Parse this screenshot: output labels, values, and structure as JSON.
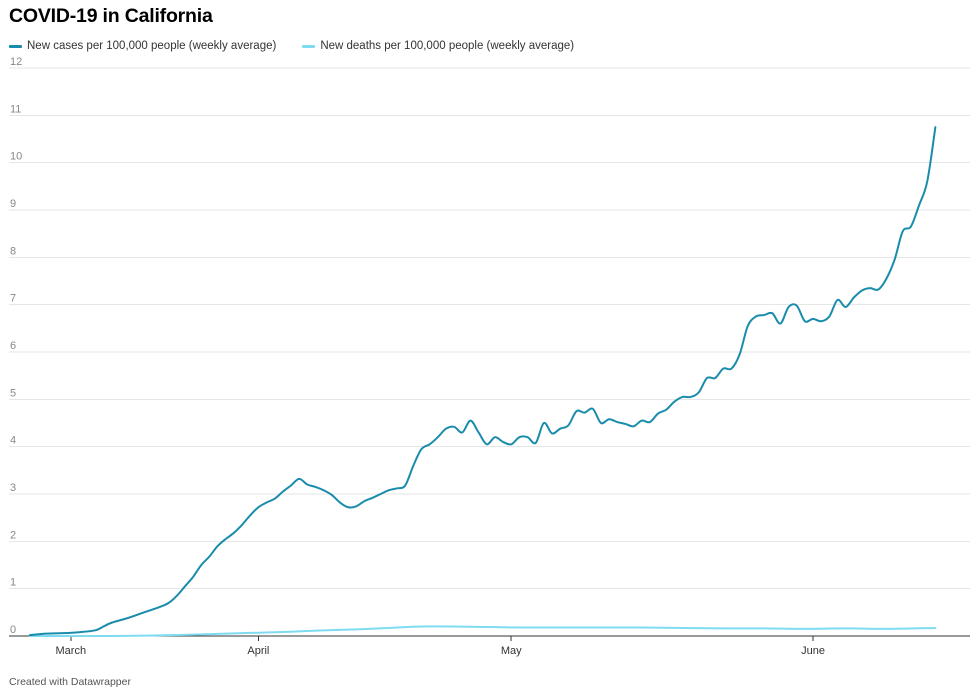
{
  "chart_data": {
    "type": "line",
    "title": "COVID-19 in California",
    "xlabel": "",
    "ylabel": "",
    "ylim": [
      0,
      12
    ],
    "yticks": [
      "0",
      "1",
      "2",
      "3",
      "4",
      "5",
      "6",
      "7",
      "8",
      "9",
      "10",
      "11",
      "12"
    ],
    "x_range_days": [
      0,
      115
    ],
    "xticks": [
      {
        "label": "March",
        "day": 5
      },
      {
        "label": "April",
        "day": 28
      },
      {
        "label": "May",
        "day": 59
      },
      {
        "label": "June",
        "day": 96
      }
    ],
    "series": [
      {
        "name": "New cases per 100,000 people (weekly average)",
        "color": "#1a8cab",
        "points": [
          [
            0,
            0.02
          ],
          [
            2,
            0.05
          ],
          [
            4,
            0.06
          ],
          [
            6,
            0.08
          ],
          [
            8,
            0.12
          ],
          [
            9,
            0.2
          ],
          [
            10,
            0.28
          ],
          [
            12,
            0.38
          ],
          [
            14,
            0.5
          ],
          [
            16,
            0.62
          ],
          [
            17,
            0.7
          ],
          [
            18,
            0.85
          ],
          [
            19,
            1.05
          ],
          [
            20,
            1.25
          ],
          [
            21,
            1.5
          ],
          [
            22,
            1.68
          ],
          [
            23,
            1.9
          ],
          [
            24,
            2.05
          ],
          [
            25,
            2.18
          ],
          [
            26,
            2.35
          ],
          [
            27,
            2.55
          ],
          [
            28,
            2.72
          ],
          [
            29,
            2.82
          ],
          [
            30,
            2.9
          ],
          [
            31,
            3.05
          ],
          [
            32,
            3.18
          ],
          [
            33,
            3.32
          ],
          [
            34,
            3.2
          ],
          [
            35,
            3.15
          ],
          [
            36,
            3.08
          ],
          [
            37,
            2.98
          ],
          [
            38,
            2.82
          ],
          [
            39,
            2.72
          ],
          [
            40,
            2.74
          ],
          [
            41,
            2.85
          ],
          [
            42,
            2.92
          ],
          [
            43,
            3.0
          ],
          [
            44,
            3.08
          ],
          [
            45,
            3.12
          ],
          [
            46,
            3.18
          ],
          [
            47,
            3.6
          ],
          [
            48,
            3.95
          ],
          [
            49,
            4.05
          ],
          [
            50,
            4.2
          ],
          [
            51,
            4.38
          ],
          [
            52,
            4.42
          ],
          [
            53,
            4.3
          ],
          [
            54,
            4.55
          ],
          [
            55,
            4.3
          ],
          [
            56,
            4.05
          ],
          [
            57,
            4.2
          ],
          [
            58,
            4.1
          ],
          [
            59,
            4.05
          ],
          [
            60,
            4.2
          ],
          [
            61,
            4.2
          ],
          [
            62,
            4.08
          ],
          [
            63,
            4.5
          ],
          [
            64,
            4.28
          ],
          [
            65,
            4.38
          ],
          [
            66,
            4.45
          ],
          [
            67,
            4.75
          ],
          [
            68,
            4.72
          ],
          [
            69,
            4.8
          ],
          [
            70,
            4.5
          ],
          [
            71,
            4.58
          ],
          [
            72,
            4.52
          ],
          [
            73,
            4.48
          ],
          [
            74,
            4.43
          ],
          [
            75,
            4.55
          ],
          [
            76,
            4.52
          ],
          [
            77,
            4.7
          ],
          [
            78,
            4.78
          ],
          [
            79,
            4.95
          ],
          [
            80,
            5.05
          ],
          [
            81,
            5.05
          ],
          [
            82,
            5.15
          ],
          [
            83,
            5.45
          ],
          [
            84,
            5.45
          ],
          [
            85,
            5.65
          ],
          [
            86,
            5.65
          ],
          [
            87,
            5.95
          ],
          [
            88,
            6.55
          ],
          [
            89,
            6.75
          ],
          [
            90,
            6.78
          ],
          [
            91,
            6.82
          ],
          [
            92,
            6.6
          ],
          [
            93,
            6.95
          ],
          [
            94,
            6.98
          ],
          [
            95,
            6.65
          ],
          [
            96,
            6.7
          ],
          [
            97,
            6.65
          ],
          [
            98,
            6.75
          ],
          [
            99,
            7.1
          ],
          [
            100,
            6.95
          ],
          [
            101,
            7.15
          ],
          [
            102,
            7.3
          ],
          [
            103,
            7.35
          ],
          [
            104,
            7.32
          ],
          [
            105,
            7.55
          ],
          [
            106,
            7.95
          ],
          [
            107,
            8.55
          ],
          [
            108,
            8.65
          ],
          [
            109,
            9.1
          ],
          [
            110,
            9.6
          ],
          [
            111,
            10.75
          ]
        ]
      },
      {
        "name": "New deaths per 100,000 people (weekly average)",
        "color": "#7fdcf0",
        "points": [
          [
            0,
            0.0
          ],
          [
            5,
            0.0
          ],
          [
            10,
            0.0
          ],
          [
            15,
            0.01
          ],
          [
            18,
            0.02
          ],
          [
            20,
            0.03
          ],
          [
            24,
            0.05
          ],
          [
            28,
            0.07
          ],
          [
            32,
            0.09
          ],
          [
            36,
            0.12
          ],
          [
            40,
            0.14
          ],
          [
            44,
            0.17
          ],
          [
            48,
            0.2
          ],
          [
            52,
            0.2
          ],
          [
            56,
            0.19
          ],
          [
            60,
            0.18
          ],
          [
            65,
            0.18
          ],
          [
            70,
            0.18
          ],
          [
            75,
            0.18
          ],
          [
            80,
            0.17
          ],
          [
            85,
            0.16
          ],
          [
            90,
            0.16
          ],
          [
            95,
            0.15
          ],
          [
            100,
            0.16
          ],
          [
            105,
            0.15
          ],
          [
            111,
            0.17
          ]
        ]
      }
    ]
  },
  "footer": {
    "credit": "Created with Datawrapper"
  }
}
